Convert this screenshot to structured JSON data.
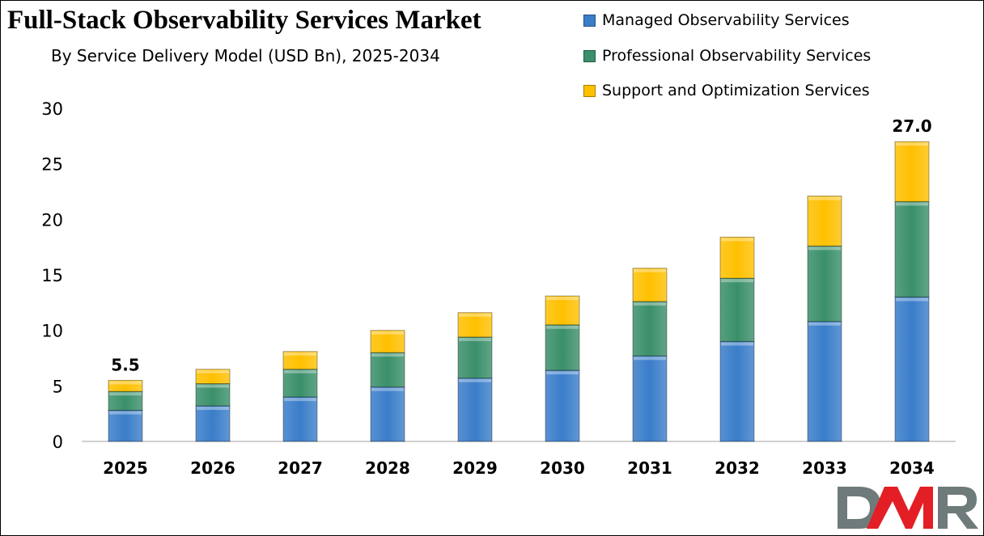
{
  "chart_data": {
    "type": "bar",
    "stacked": true,
    "title": "Full-Stack Observability Services Market",
    "subtitle": "By Service Delivery Model (USD Bn), 2025-2034",
    "xlabel": "",
    "ylabel": "",
    "ylim": [
      0,
      30
    ],
    "yticks": [
      0,
      5,
      10,
      15,
      20,
      25,
      30
    ],
    "grid": false,
    "legend_position": "top-right",
    "categories": [
      "2025",
      "2026",
      "2027",
      "2028",
      "2029",
      "2030",
      "2031",
      "2032",
      "2033",
      "2034"
    ],
    "series": [
      {
        "name": "Managed Observability Services",
        "color": "#3a7dc9",
        "values": [
          2.8,
          3.2,
          4.0,
          4.9,
          5.7,
          6.4,
          7.7,
          9.0,
          10.8,
          13.0
        ]
      },
      {
        "name": "Professional Observability Services",
        "color": "#3a8f6a",
        "values": [
          1.7,
          2.0,
          2.5,
          3.1,
          3.7,
          4.1,
          4.9,
          5.7,
          6.8,
          8.6
        ]
      },
      {
        "name": "Support and Optimization Services",
        "color": "#ffc000",
        "values": [
          1.0,
          1.3,
          1.6,
          2.0,
          2.2,
          2.6,
          3.0,
          3.7,
          4.5,
          5.4
        ]
      }
    ],
    "data_labels": [
      {
        "category": "2025",
        "text": "5.5"
      },
      {
        "category": "2034",
        "text": "27.0"
      }
    ]
  },
  "logo": {
    "text": "DMR",
    "colors": [
      "#6f7a7a",
      "#e31e24"
    ]
  }
}
